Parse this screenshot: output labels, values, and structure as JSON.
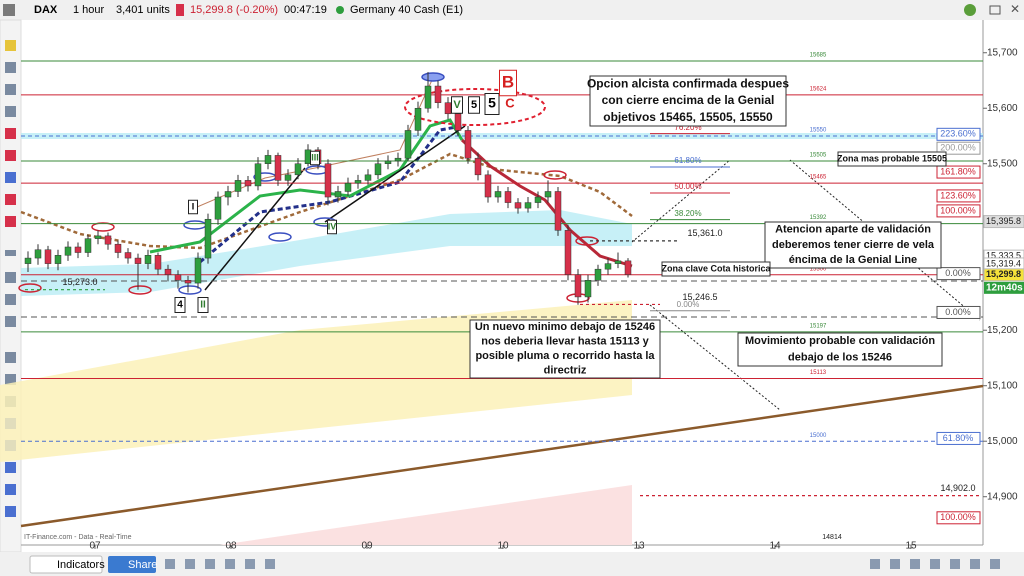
{
  "toolbar": {
    "symbol": "DAX",
    "timeframe": "1 hour",
    "units": "3,401 units",
    "price": "15,299.8 (-0.20%)",
    "time": "00:47:19",
    "instrument": "Germany 40 Cash (E1)"
  },
  "bottom_bar": {
    "indicators": "Indicators",
    "share": "Share"
  },
  "chart": {
    "type": "candlestick",
    "source": "IT-Finance.com - Data - Real-Time",
    "up_color": "#2e9e3e",
    "down_color": "#d6304a",
    "ylim": [
      14822,
      15768
    ],
    "yticks": [
      {
        "value": 15700,
        "label": "15,700"
      },
      {
        "value": 15600,
        "label": "15,600"
      },
      {
        "value": 15500,
        "label": "15,500"
      },
      {
        "value": 15200,
        "label": "15,200"
      },
      {
        "value": 15100,
        "label": "15,100"
      },
      {
        "value": 15000,
        "label": "15,000"
      },
      {
        "value": 14900,
        "label": "14,900"
      }
    ],
    "x_labels": [
      "07",
      "08",
      "09",
      "10",
      "13",
      "14",
      "15"
    ],
    "candles": [
      [
        15320,
        15342,
        15305,
        15330
      ],
      [
        15330,
        15355,
        15318,
        15345
      ],
      [
        15345,
        15352,
        15310,
        15320
      ],
      [
        15320,
        15345,
        15308,
        15335
      ],
      [
        15335,
        15360,
        15325,
        15350
      ],
      [
        15350,
        15358,
        15330,
        15340
      ],
      [
        15340,
        15372,
        15332,
        15365
      ],
      [
        15365,
        15380,
        15355,
        15370
      ],
      [
        15370,
        15376,
        15345,
        15355
      ],
      [
        15355,
        15362,
        15330,
        15340
      ],
      [
        15340,
        15348,
        15320,
        15330
      ],
      [
        15330,
        15338,
        15273,
        15320
      ],
      [
        15320,
        15345,
        15310,
        15335
      ],
      [
        15335,
        15340,
        15300,
        15310
      ],
      [
        15310,
        15318,
        15288,
        15300
      ],
      [
        15300,
        15308,
        15275,
        15290
      ],
      [
        15290,
        15298,
        15268,
        15285
      ],
      [
        15285,
        15340,
        15275,
        15330
      ],
      [
        15330,
        15410,
        15320,
        15400
      ],
      [
        15400,
        15450,
        15390,
        15440
      ],
      [
        15440,
        15460,
        15425,
        15450
      ],
      [
        15450,
        15480,
        15440,
        15470
      ],
      [
        15470,
        15478,
        15450,
        15460
      ],
      [
        15460,
        15512,
        15452,
        15500
      ],
      [
        15500,
        15525,
        15490,
        15515
      ],
      [
        15515,
        15520,
        15460,
        15470
      ],
      [
        15470,
        15490,
        15460,
        15480
      ],
      [
        15480,
        15510,
        15472,
        15500
      ],
      [
        15500,
        15535,
        15495,
        15525
      ],
      [
        15525,
        15530,
        15490,
        15500
      ],
      [
        15500,
        15508,
        15425,
        15440
      ],
      [
        15440,
        15460,
        15430,
        15450
      ],
      [
        15450,
        15475,
        15442,
        15465
      ],
      [
        15465,
        15480,
        15455,
        15470
      ],
      [
        15470,
        15490,
        15462,
        15480
      ],
      [
        15480,
        15510,
        15472,
        15500
      ],
      [
        15500,
        15515,
        15490,
        15505
      ],
      [
        15505,
        15520,
        15495,
        15510
      ],
      [
        15510,
        15570,
        15505,
        15560
      ],
      [
        15560,
        15612,
        15550,
        15600
      ],
      [
        15600,
        15665,
        15592,
        15640
      ],
      [
        15640,
        15650,
        15600,
        15610
      ],
      [
        15610,
        15620,
        15580,
        15590
      ],
      [
        15590,
        15598,
        15550,
        15560
      ],
      [
        15560,
        15568,
        15500,
        15510
      ],
      [
        15510,
        15520,
        15470,
        15480
      ],
      [
        15480,
        15488,
        15430,
        15440
      ],
      [
        15440,
        15460,
        15430,
        15450
      ],
      [
        15450,
        15458,
        15420,
        15430
      ],
      [
        15430,
        15438,
        15410,
        15420
      ],
      [
        15420,
        15440,
        15412,
        15430
      ],
      [
        15430,
        15450,
        15420,
        15440
      ],
      [
        15440,
        15470,
        15430,
        15450
      ],
      [
        15450,
        15458,
        15370,
        15380
      ],
      [
        15380,
        15390,
        15290,
        15300
      ],
      [
        15300,
        15310,
        15246,
        15260
      ],
      [
        15260,
        15300,
        15250,
        15290
      ],
      [
        15290,
        15318,
        15280,
        15310
      ],
      [
        15310,
        15330,
        15300,
        15320
      ],
      [
        15320,
        15340,
        15312,
        15325
      ],
      [
        15325,
        15330,
        15295,
        15300
      ]
    ],
    "levels": [
      {
        "value": 15685,
        "color": "#3a8a3a"
      },
      {
        "value": 15624,
        "color": "#cc2233"
      },
      {
        "value": 15550,
        "color": "#4a6fd0",
        "dash": true
      },
      {
        "value": 15505,
        "color": "#3a8a3a"
      },
      {
        "value": 15465,
        "color": "#cc2233"
      },
      {
        "value": 15392,
        "color": "#3a8a3a"
      },
      {
        "value": 15300,
        "color": "#cc2233"
      },
      {
        "value": 15197,
        "color": "#3a8a3a"
      },
      {
        "value": 15113,
        "color": "#cc2233"
      },
      {
        "value": 15000,
        "color": "#4a6fd0",
        "dash": true
      }
    ],
    "bottom_level": 14814,
    "short_levels": [
      {
        "value": 15273.0,
        "label": "15,273.0",
        "color": "#2e9e3e"
      },
      {
        "value": 15361.0,
        "label": "15,361.0",
        "color": "#333333"
      },
      {
        "value": 15246.5,
        "label": "15,246.5",
        "color": "#cc2233"
      },
      {
        "value": 14902.0,
        "label": "14,902.0",
        "color": "#cc2233"
      }
    ],
    "inner_fibs": [
      {
        "value": 76.2,
        "label": "76.20%",
        "price": 15565,
        "color": "#cc2233"
      },
      {
        "value": 61.8,
        "label": "61.80%",
        "price": 15505,
        "color": "#4a6fd0"
      },
      {
        "value": 50.0,
        "label": "50.00%",
        "price": 15458,
        "color": "#cc2233"
      },
      {
        "value": 38.2,
        "label": "38.20%",
        "price": 15410,
        "color": "#3a8a3a"
      },
      {
        "value": 0.0,
        "label": "0.00%",
        "price": 15246,
        "color": "#888888"
      }
    ],
    "axis_fibs": [
      {
        "value": 223.6,
        "label": "223.60%",
        "price": 15553,
        "color": "#4a6fd0"
      },
      {
        "value": 200.0,
        "label": "200.00%",
        "price": 15528,
        "color": "#999999"
      },
      {
        "value": 161.8,
        "label": "161.80%",
        "price": 15485,
        "color": "#cc2233"
      },
      {
        "value": 123.6,
        "label": "123.60%",
        "price": 15442,
        "color": "#cc2233"
      },
      {
        "value": 100.0,
        "label": "100.00%",
        "price": 15415,
        "color": "#cc2233"
      },
      {
        "value": 0.0,
        "label": "0.00%",
        "price": 15302,
        "color": "#555555"
      },
      {
        "value": 0.0,
        "label": "0.00%",
        "price": 15232,
        "color": "#555555"
      },
      {
        "value": 61.8,
        "label": "61.80%",
        "price": 15005,
        "color": "#4a6fd0"
      },
      {
        "value": 100.0,
        "label": "100.00%",
        "price": 14862,
        "color": "#cc2233"
      }
    ],
    "price_tags": [
      {
        "value": 15395.8,
        "label": "15,395.8",
        "color": "#dddddd"
      },
      {
        "value": 15333.5,
        "label": "15,333.5",
        "color": "#ffffff"
      },
      {
        "value": 15319.4,
        "label": "15,319.4",
        "color": "#ffffff"
      },
      {
        "value": 15299.8,
        "label": "15,299.8",
        "color": "#f5e23a"
      }
    ],
    "countdown": "12m40s",
    "waves": [
      "4",
      "II",
      "I",
      "III",
      "IV",
      "V",
      "5",
      "5",
      "C",
      "B"
    ],
    "annotations": [
      [
        "Opcion alcista confirmada despues",
        "con cierre  encima de la Genial",
        "objetivos 15465, 15505, 15550"
      ],
      [
        "Zona mas probable 15505"
      ],
      [
        "Atencion aparte de validación",
        "deberemos tener cierre de vela",
        "éncima de la Genial Line"
      ],
      [
        "Zona clave Cota historica"
      ],
      [
        "Un nuevo minimo debajo de 15246",
        "nos deberia llevar hasta 15113 y",
        "posible pluma o recorrido hasta la",
        "directriz"
      ],
      [
        "Movimiento probable con validación",
        "debajo de los 15246"
      ]
    ]
  }
}
